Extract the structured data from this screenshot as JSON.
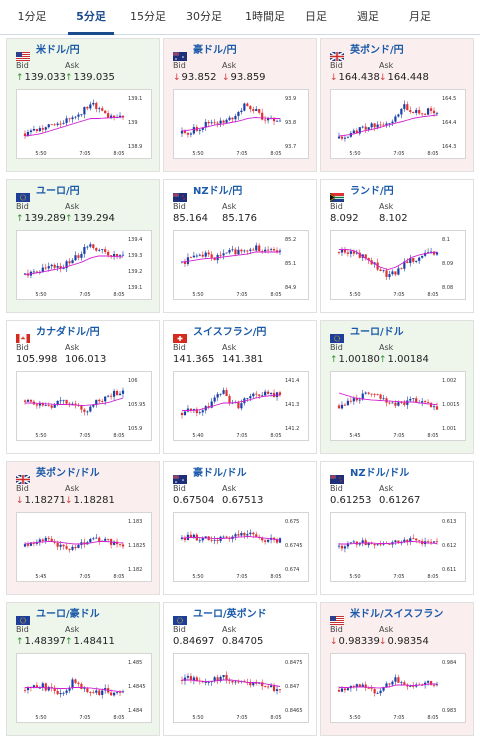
{
  "tabs": [
    {
      "label": "1分足",
      "active": false
    },
    {
      "label": "5分足",
      "active": true
    },
    {
      "label": "15分足",
      "active": false
    },
    {
      "label": "30分足",
      "active": false
    },
    {
      "label": "1時間足",
      "active": false
    },
    {
      "label": "日足",
      "active": false
    },
    {
      "label": "週足",
      "active": false
    },
    {
      "label": "月足",
      "active": false
    }
  ],
  "labels": {
    "bid": "Bid",
    "ask": "Ask"
  },
  "colors": {
    "up_bg": "#eef6ec",
    "down_bg": "#fbeeee",
    "up": "#2a8f2a",
    "down": "#d63a3a",
    "link": "#1a5aa8",
    "ma": "#d21fd2"
  },
  "cards": [
    {
      "pair": "米ドル/円",
      "flag": "us",
      "bid": "139.033",
      "ask": "139.035",
      "bid_dir": "up",
      "ask_dir": "up",
      "y_ticks": [
        "139.1",
        "139",
        "138.9"
      ],
      "x_ticks": [
        "5:50",
        "7:05",
        "8:05"
      ],
      "trend": [
        0.25,
        0.3,
        0.35,
        0.4,
        0.45,
        0.5,
        0.6,
        0.7,
        0.85,
        0.75,
        0.6,
        0.62,
        0.6
      ],
      "ma": [
        0.2,
        0.22,
        0.25,
        0.3,
        0.35,
        0.4,
        0.45,
        0.5,
        0.55,
        0.55,
        0.56,
        0.57,
        0.58
      ]
    },
    {
      "pair": "豪ドル/円",
      "flag": "au",
      "bid": "93.852",
      "ask": "93.859",
      "bid_dir": "down",
      "ask_dir": "down",
      "y_ticks": [
        "93.9",
        "93.8",
        "93.7"
      ],
      "x_ticks": [
        "5:50",
        "7:05",
        "8:05"
      ],
      "trend": [
        0.25,
        0.3,
        0.35,
        0.45,
        0.5,
        0.45,
        0.55,
        0.7,
        0.85,
        0.7,
        0.55,
        0.5,
        0.55
      ],
      "ma": [
        0.3,
        0.32,
        0.35,
        0.38,
        0.42,
        0.44,
        0.47,
        0.5,
        0.55,
        0.57,
        0.56,
        0.55,
        0.55
      ]
    },
    {
      "pair": "英ポンド/円",
      "flag": "gb",
      "bid": "164.438",
      "ask": "164.448",
      "bid_dir": "down",
      "ask_dir": "down",
      "y_ticks": [
        "164.5",
        "164.4",
        "164.3"
      ],
      "x_ticks": [
        "5:50",
        "7:05",
        "8:05"
      ],
      "trend": [
        0.15,
        0.2,
        0.3,
        0.35,
        0.4,
        0.45,
        0.5,
        0.55,
        0.8,
        0.7,
        0.65,
        0.7,
        0.72
      ],
      "ma": [
        0.2,
        0.22,
        0.25,
        0.3,
        0.33,
        0.37,
        0.42,
        0.46,
        0.5,
        0.55,
        0.58,
        0.6,
        0.62
      ]
    },
    {
      "pair": "ユーロ/円",
      "flag": "eu",
      "bid": "139.289",
      "ask": "139.294",
      "bid_dir": "up",
      "ask_dir": "up",
      "y_ticks": [
        "139.4",
        "139.3",
        "139.2",
        "139.1"
      ],
      "x_ticks": [
        "5:50",
        "7:05",
        "8:05"
      ],
      "trend": [
        0.25,
        0.3,
        0.33,
        0.38,
        0.4,
        0.45,
        0.55,
        0.7,
        0.85,
        0.75,
        0.65,
        0.6,
        0.6
      ],
      "ma": [
        0.25,
        0.27,
        0.3,
        0.33,
        0.36,
        0.4,
        0.45,
        0.5,
        0.58,
        0.62,
        0.62,
        0.61,
        0.6
      ]
    },
    {
      "pair": "NZドル/円",
      "flag": "nz",
      "bid": "85.164",
      "ask": "85.176",
      "bid_dir": "none",
      "ask_dir": "none",
      "y_ticks": [
        "85.2",
        "85.1",
        "84.9"
      ],
      "x_ticks": [
        "5:50",
        "7:05",
        "8:05"
      ],
      "trend": [
        0.5,
        0.55,
        0.6,
        0.65,
        0.55,
        0.65,
        0.7,
        0.72,
        0.75,
        0.8,
        0.75,
        0.7,
        0.7
      ],
      "ma": [
        0.5,
        0.52,
        0.55,
        0.57,
        0.58,
        0.6,
        0.62,
        0.64,
        0.66,
        0.7,
        0.7,
        0.7,
        0.7
      ]
    },
    {
      "pair": "ランド/円",
      "flag": "za",
      "bid": "8.092",
      "ask": "8.102",
      "bid_dir": "none",
      "ask_dir": "none",
      "y_ticks": [
        "8.1",
        "8.09",
        "8.08"
      ],
      "x_ticks": [
        "5:50",
        "7:05",
        "8:05"
      ],
      "trend": [
        0.7,
        0.72,
        0.68,
        0.6,
        0.5,
        0.35,
        0.2,
        0.3,
        0.45,
        0.55,
        0.6,
        0.65,
        0.68
      ],
      "ma": [
        0.75,
        0.75,
        0.72,
        0.6,
        0.5,
        0.4,
        0.35,
        0.4,
        0.5,
        0.6,
        0.65,
        0.68,
        0.7
      ]
    },
    {
      "pair": "カナダドル/円",
      "flag": "ca",
      "bid": "105.998",
      "ask": "106.013",
      "bid_dir": "none",
      "ask_dir": "none",
      "y_ticks": [
        "106",
        "105.95",
        "105.9"
      ],
      "x_ticks": [
        "5:50",
        "7:05",
        "8:05"
      ],
      "trend": [
        0.55,
        0.5,
        0.45,
        0.4,
        0.5,
        0.55,
        0.45,
        0.35,
        0.4,
        0.55,
        0.6,
        0.7,
        0.75
      ],
      "ma": [
        0.5,
        0.5,
        0.49,
        0.48,
        0.47,
        0.47,
        0.46,
        0.45,
        0.46,
        0.48,
        0.5,
        0.55,
        0.6
      ]
    },
    {
      "pair": "スイスフラン/円",
      "flag": "ch",
      "bid": "141.365",
      "ask": "141.381",
      "bid_dir": "none",
      "ask_dir": "none",
      "y_ticks": [
        "141.4",
        "141.3",
        "141.2"
      ],
      "x_ticks": [
        "5:40",
        "7:05",
        "8:05"
      ],
      "trend": [
        0.3,
        0.35,
        0.3,
        0.4,
        0.6,
        0.75,
        0.5,
        0.45,
        0.6,
        0.65,
        0.7,
        0.65,
        0.68
      ],
      "ma": [
        0.35,
        0.35,
        0.36,
        0.4,
        0.45,
        0.5,
        0.5,
        0.52,
        0.55,
        0.6,
        0.63,
        0.65,
        0.66
      ]
    },
    {
      "pair": "ユーロ/ドル",
      "flag": "eu",
      "bid": "1.00180",
      "ask": "1.00184",
      "bid_dir": "up",
      "ask_dir": "up",
      "y_ticks": [
        "1.002",
        "1.0015",
        "1.001"
      ],
      "x_ticks": [
        "5:45",
        "7:05",
        "8:05"
      ],
      "trend": [
        0.45,
        0.5,
        0.55,
        0.65,
        0.7,
        0.6,
        0.5,
        0.45,
        0.5,
        0.55,
        0.5,
        0.45,
        0.4
      ],
      "ma": [
        0.7,
        0.65,
        0.6,
        0.58,
        0.56,
        0.55,
        0.54,
        0.53,
        0.52,
        0.52,
        0.5,
        0.48,
        0.47
      ]
    },
    {
      "pair": "英ポンド/ドル",
      "flag": "gb",
      "bid": "1.18271",
      "ask": "1.18281",
      "bid_dir": "down",
      "ask_dir": "down",
      "y_ticks": [
        "1.183",
        "1.1825",
        "1.182"
      ],
      "x_ticks": [
        "5:45",
        "7:05",
        "8:05"
      ],
      "trend": [
        0.45,
        0.55,
        0.6,
        0.55,
        0.5,
        0.45,
        0.4,
        0.5,
        0.55,
        0.6,
        0.55,
        0.5,
        0.5
      ],
      "ma": [
        0.5,
        0.52,
        0.54,
        0.55,
        0.54,
        0.52,
        0.5,
        0.5,
        0.52,
        0.55,
        0.55,
        0.53,
        0.52
      ]
    },
    {
      "pair": "豪ドル/ドル",
      "flag": "au",
      "bid": "0.67504",
      "ask": "0.67513",
      "bid_dir": "none",
      "ask_dir": "none",
      "y_ticks": [
        "0.675",
        "0.6745",
        "0.674"
      ],
      "x_ticks": [
        "5:50",
        "7:05",
        "8:05"
      ],
      "trend": [
        0.6,
        0.65,
        0.62,
        0.6,
        0.55,
        0.6,
        0.65,
        0.7,
        0.68,
        0.65,
        0.6,
        0.58,
        0.56
      ],
      "ma": [
        0.62,
        0.63,
        0.63,
        0.62,
        0.61,
        0.61,
        0.62,
        0.64,
        0.65,
        0.64,
        0.62,
        0.6,
        0.58
      ]
    },
    {
      "pair": "NZドル/ドル",
      "flag": "nz",
      "bid": "0.61253",
      "ask": "0.61267",
      "bid_dir": "none",
      "ask_dir": "none",
      "y_ticks": [
        "0.613",
        "0.612",
        "0.611"
      ],
      "x_ticks": [
        "5:50",
        "7:05",
        "8:05"
      ],
      "trend": [
        0.45,
        0.5,
        0.55,
        0.52,
        0.5,
        0.48,
        0.5,
        0.55,
        0.6,
        0.58,
        0.55,
        0.5,
        0.5
      ],
      "ma": [
        0.5,
        0.5,
        0.51,
        0.52,
        0.52,
        0.51,
        0.51,
        0.52,
        0.54,
        0.55,
        0.54,
        0.52,
        0.51
      ]
    },
    {
      "pair": "ユーロ/豪ドル",
      "flag": "eu",
      "bid": "1.48397",
      "ask": "1.48411",
      "bid_dir": "up",
      "ask_dir": "up",
      "y_ticks": [
        "1.485",
        "1.4845",
        "1.484"
      ],
      "x_ticks": [
        "5:50",
        "7:05",
        "8:05"
      ],
      "trend": [
        0.4,
        0.45,
        0.5,
        0.4,
        0.35,
        0.4,
        0.6,
        0.45,
        0.4,
        0.35,
        0.4,
        0.3,
        0.35
      ],
      "ma": [
        0.45,
        0.45,
        0.45,
        0.44,
        0.43,
        0.43,
        0.45,
        0.45,
        0.44,
        0.42,
        0.4,
        0.38,
        0.36
      ]
    },
    {
      "pair": "ユーロ/英ポンド",
      "flag": "eu",
      "bid": "0.84697",
      "ask": "0.84705",
      "bid_dir": "none",
      "ask_dir": "none",
      "y_ticks": [
        "0.8475",
        "0.847",
        "0.8465"
      ],
      "x_ticks": [
        "5:50",
        "7:05",
        "8:05"
      ],
      "trend": [
        0.6,
        0.65,
        0.55,
        0.5,
        0.6,
        0.65,
        0.6,
        0.55,
        0.5,
        0.55,
        0.5,
        0.45,
        0.4
      ],
      "ma": [
        0.6,
        0.6,
        0.58,
        0.57,
        0.58,
        0.6,
        0.6,
        0.58,
        0.55,
        0.55,
        0.53,
        0.5,
        0.47
      ]
    },
    {
      "pair": "米ドル/スイスフラン",
      "flag": "us",
      "bid": "0.98339",
      "ask": "0.98354",
      "bid_dir": "down",
      "ask_dir": "down",
      "y_ticks": [
        "0.984",
        "0.983"
      ],
      "x_ticks": [
        "5:50",
        "7:05",
        "8:05"
      ],
      "trend": [
        0.4,
        0.45,
        0.5,
        0.45,
        0.4,
        0.35,
        0.55,
        0.6,
        0.5,
        0.45,
        0.5,
        0.55,
        0.52
      ],
      "ma": [
        0.45,
        0.45,
        0.46,
        0.46,
        0.45,
        0.44,
        0.46,
        0.5,
        0.5,
        0.49,
        0.5,
        0.52,
        0.52
      ]
    }
  ]
}
